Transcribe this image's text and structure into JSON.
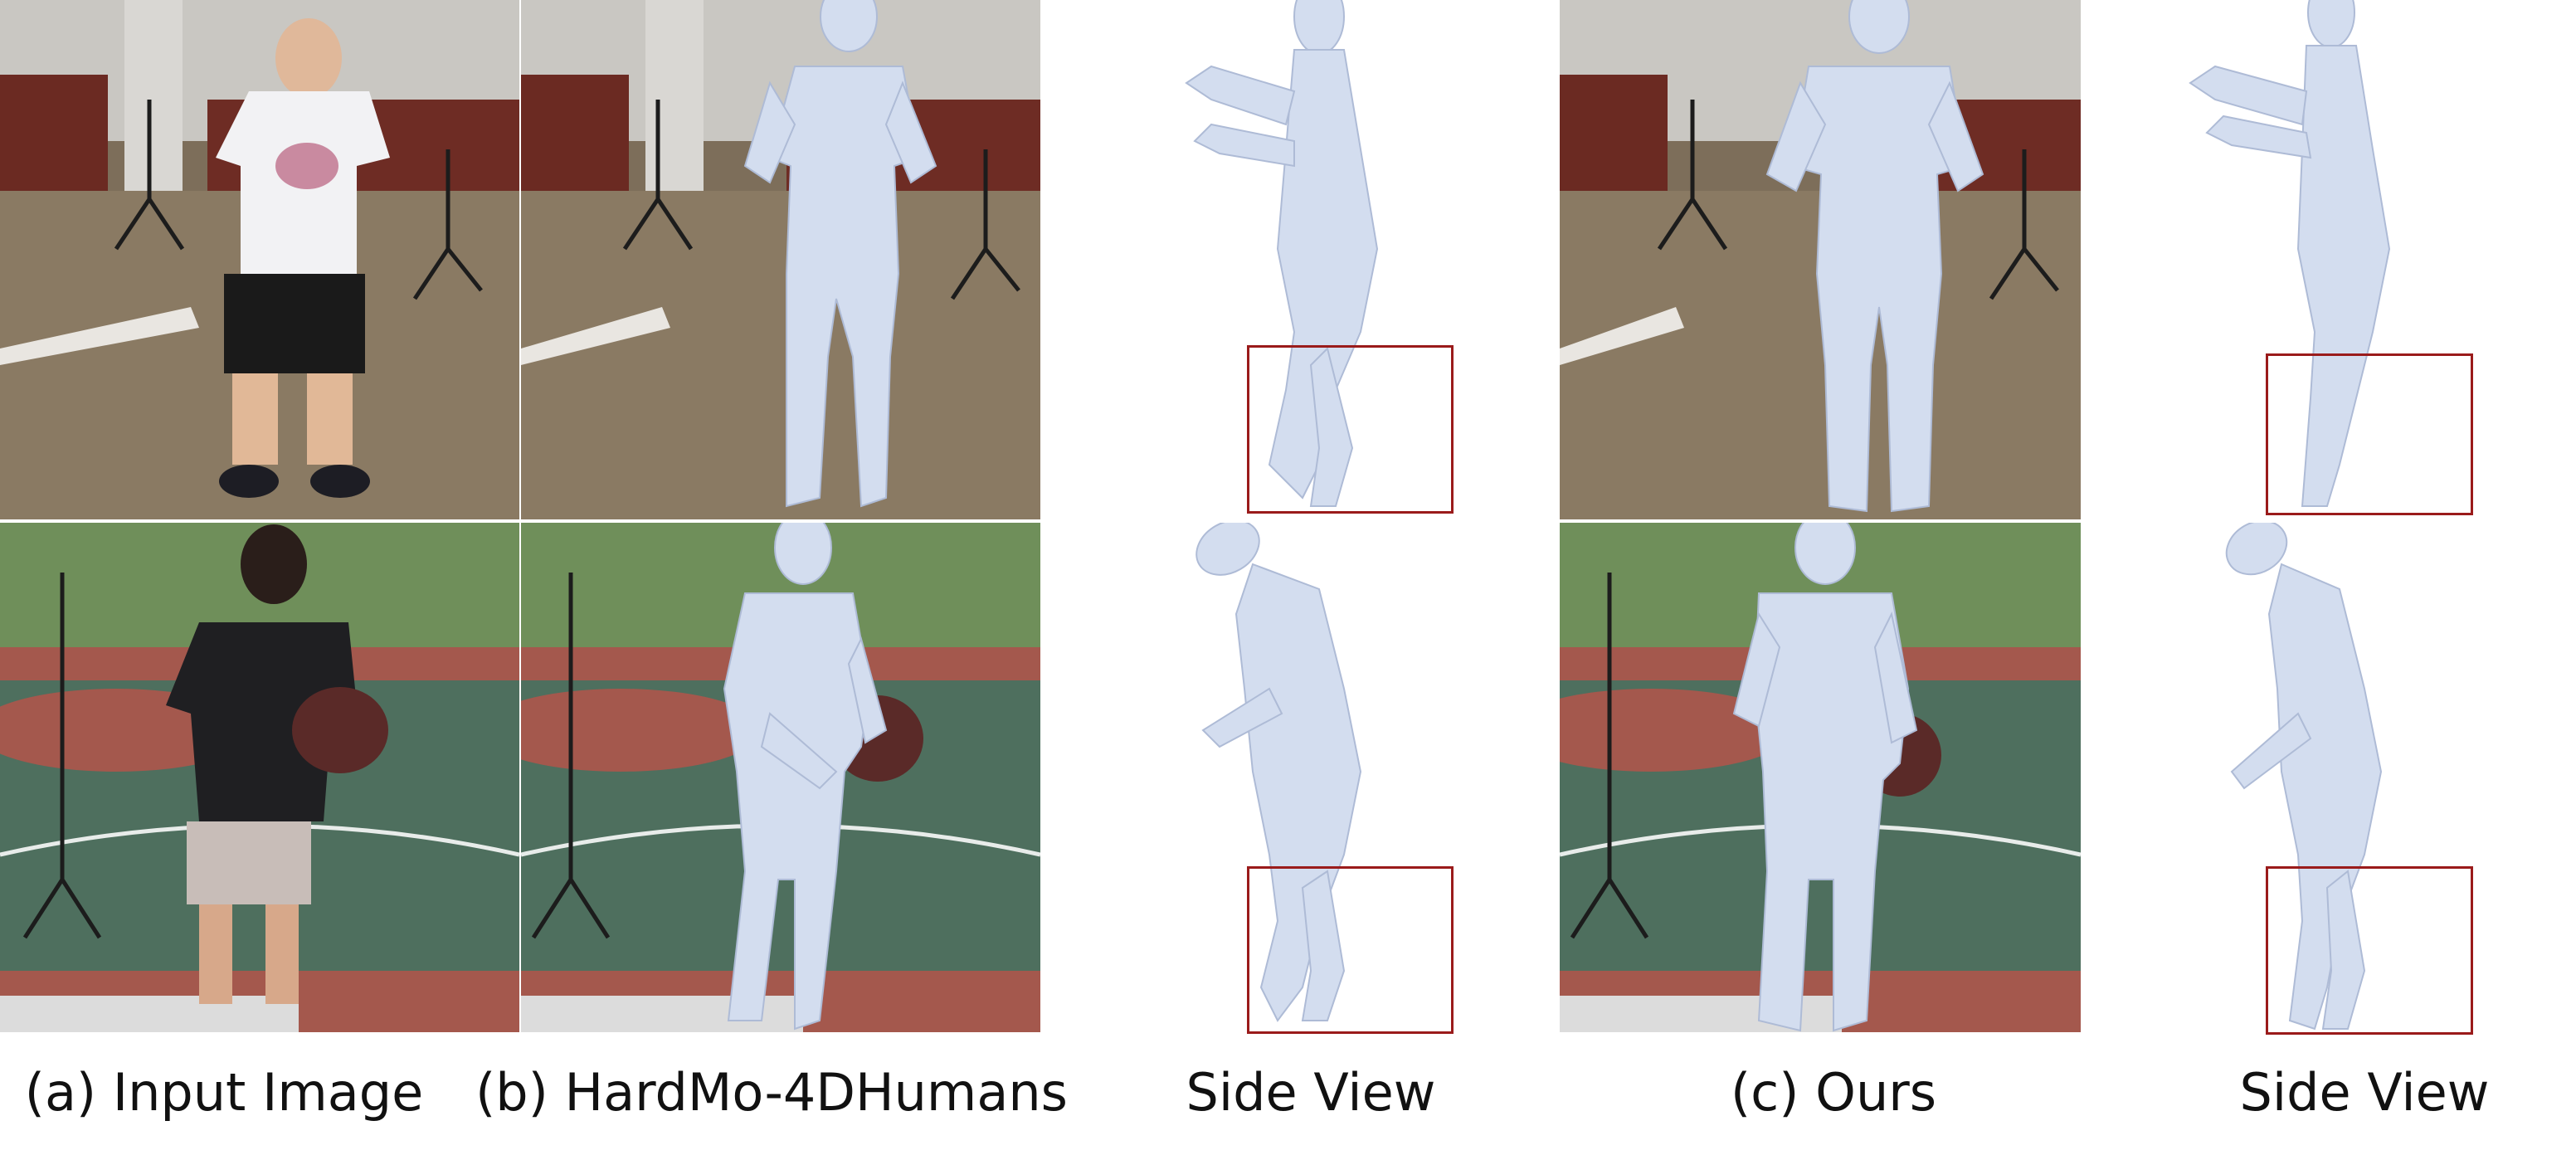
{
  "captions": {
    "input": "(a) Input Image",
    "baseline": "(b) HardMo-4DHumans",
    "side_view_1": "Side View",
    "ours": "(c) Ours",
    "side_view_2": "Side View"
  },
  "colors": {
    "mesh": "#cdd8ec",
    "mesh_shadow": "#a9b8d4",
    "highlight_box": "#9a1b1b",
    "indoor_floor": "#8a7a63",
    "court_green": "#4e6f5e",
    "court_red": "#a4584d"
  },
  "rows": [
    {
      "scene": "indoor-library"
    },
    {
      "scene": "outdoor-basketball-court"
    }
  ]
}
